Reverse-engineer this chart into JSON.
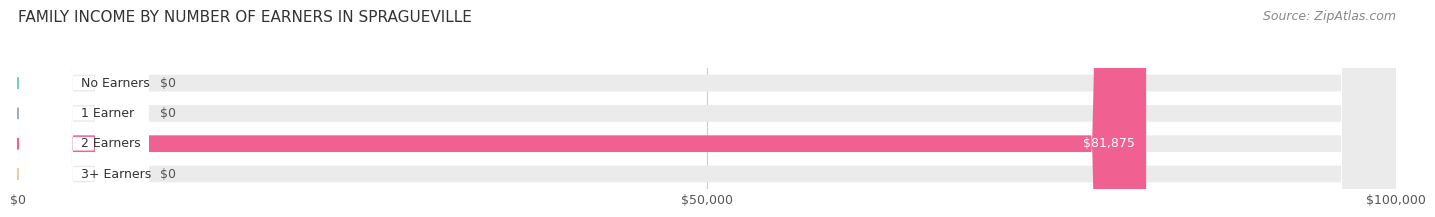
{
  "title": "FAMILY INCOME BY NUMBER OF EARNERS IN SPRAGUEVILLE",
  "source": "Source: ZipAtlas.com",
  "categories": [
    "No Earners",
    "1 Earner",
    "2 Earners",
    "3+ Earners"
  ],
  "values": [
    0,
    0,
    81875,
    0
  ],
  "bar_colors": [
    "#6ecfcf",
    "#a0a8d8",
    "#f06090",
    "#f5c897"
  ],
  "bar_bg_color": "#ebebeb",
  "bar_height": 0.55,
  "xlim": [
    0,
    100000
  ],
  "xticks": [
    0,
    50000,
    100000
  ],
  "xtick_labels": [
    "$0",
    "$50,000",
    "$100,000"
  ],
  "label_color_inside": "#ffffff",
  "label_color_outside": "#555555",
  "title_fontsize": 11,
  "source_fontsize": 9,
  "tick_fontsize": 9,
  "bar_label_fontsize": 9,
  "category_fontsize": 9,
  "background_color": "#ffffff",
  "plot_bg_color": "#ffffff"
}
